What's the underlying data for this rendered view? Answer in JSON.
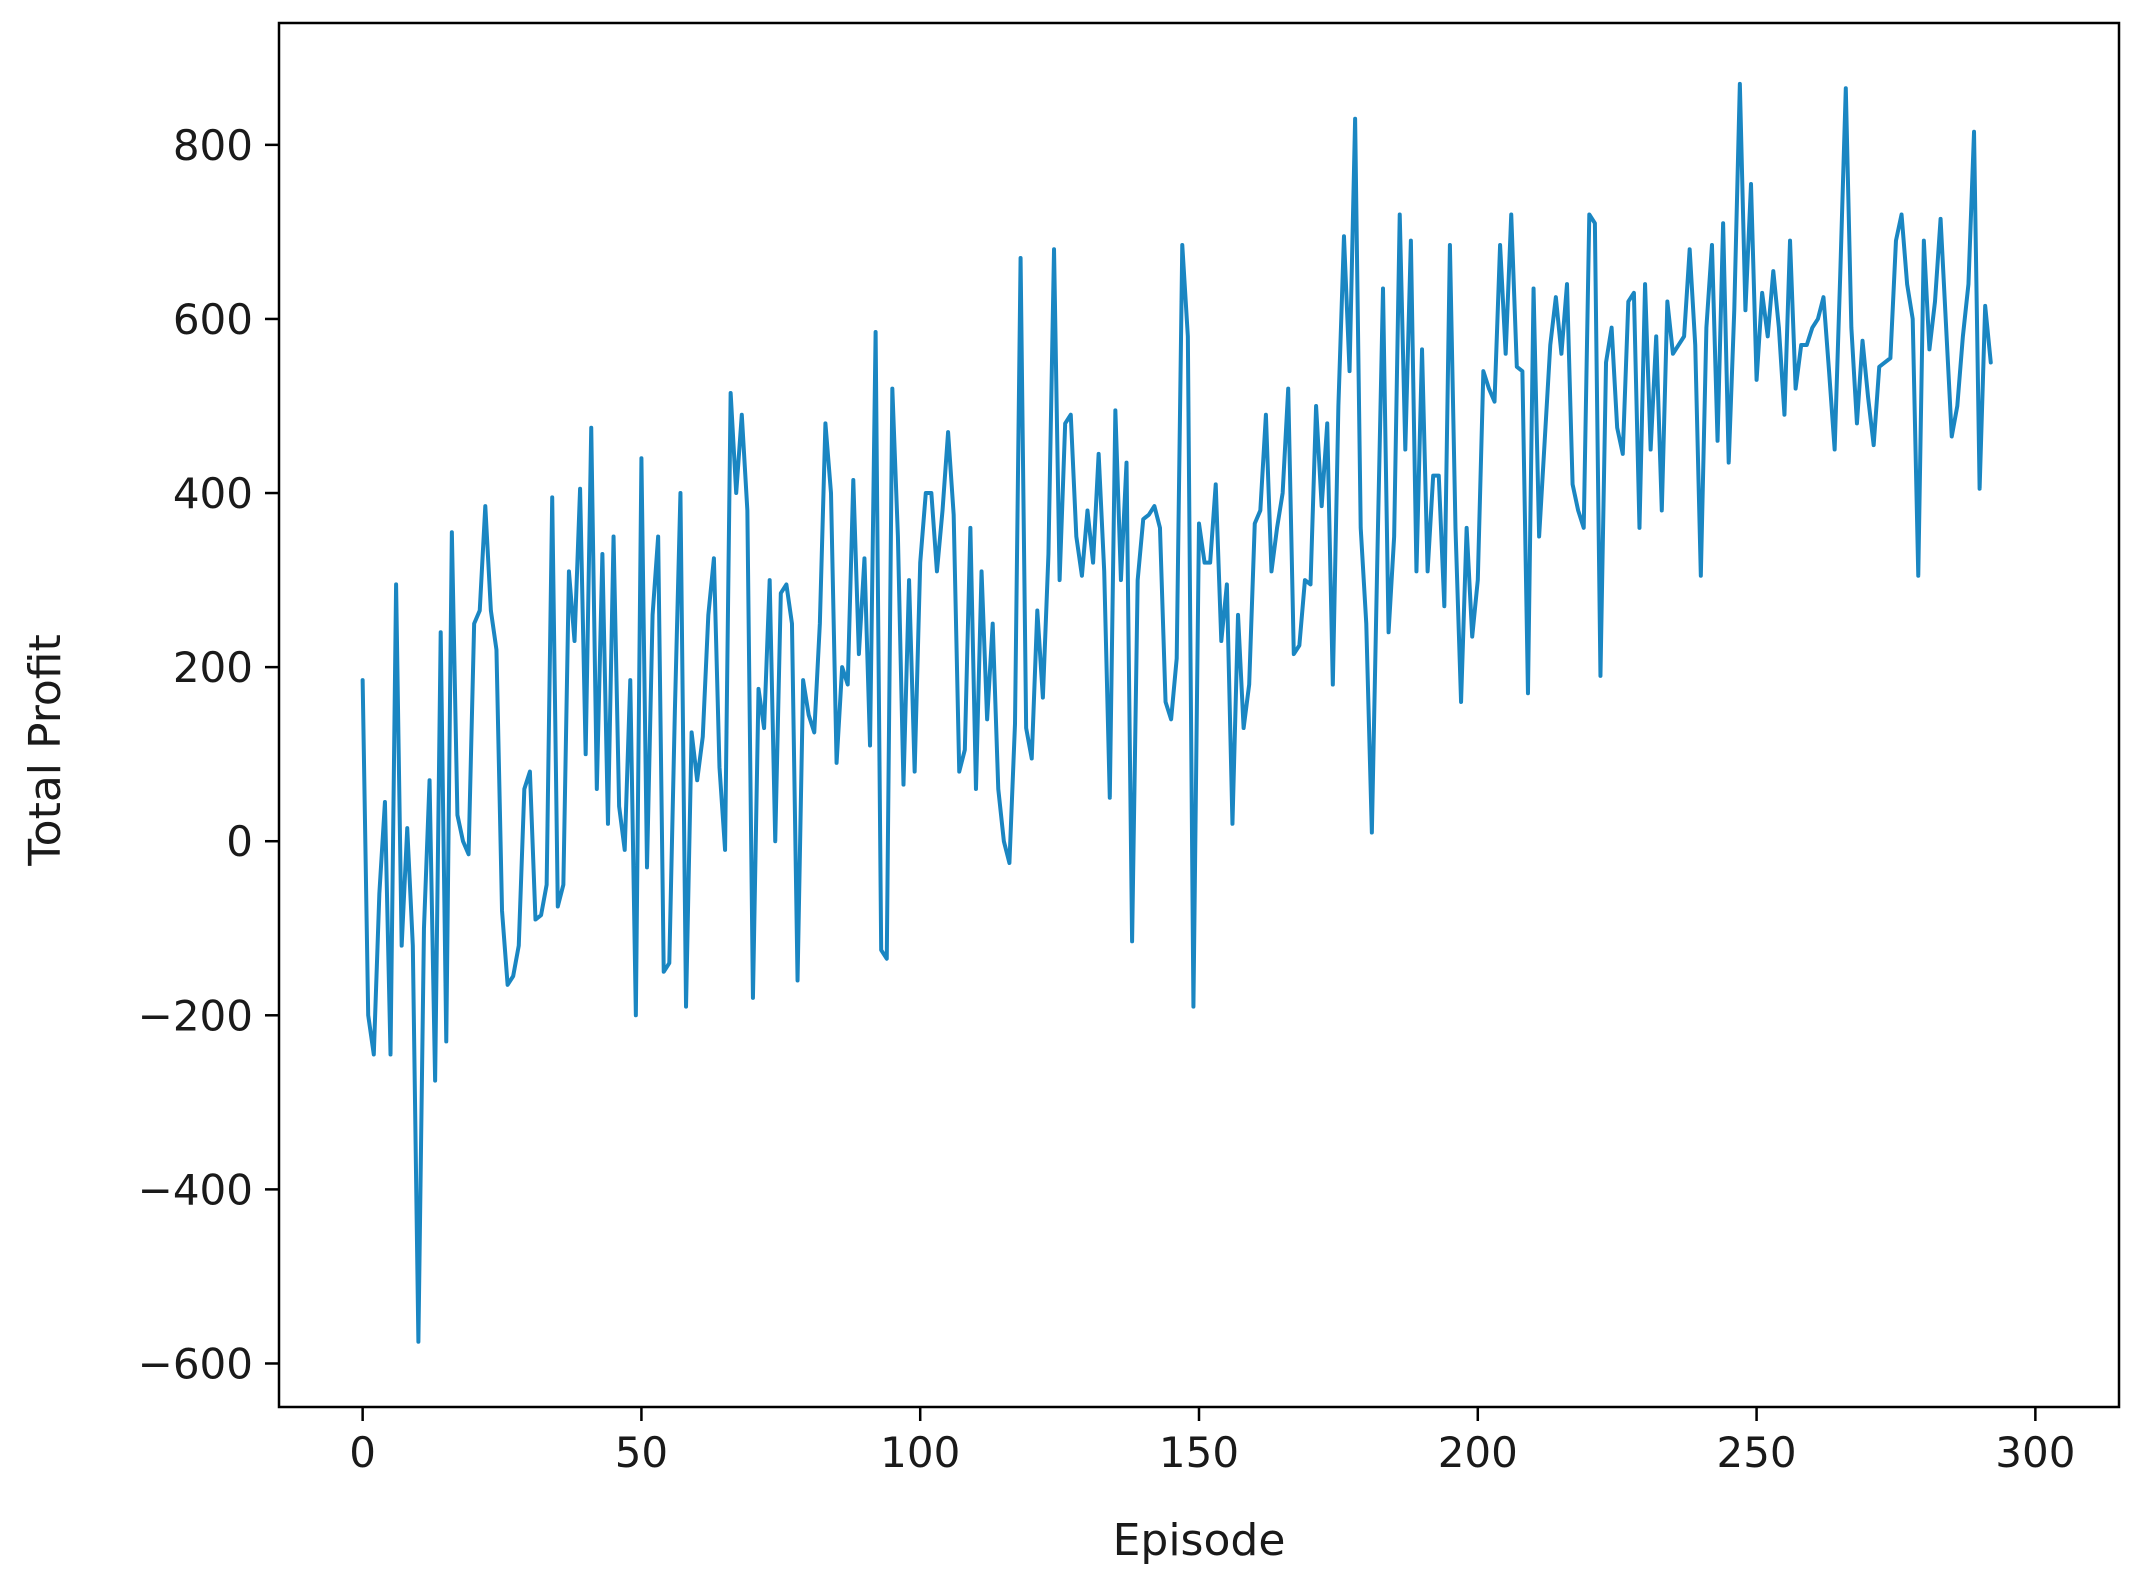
{
  "chart_data": {
    "type": "line",
    "title": "",
    "xlabel": "Episode",
    "ylabel": "Total Profit",
    "xlim": [
      -15,
      315
    ],
    "ylim": [
      -650,
      940
    ],
    "xticks": [
      0,
      50,
      100,
      150,
      200,
      250,
      300
    ],
    "yticks": [
      -600,
      -400,
      -200,
      0,
      200,
      400,
      600,
      800
    ],
    "ytick_labels": [
      "−600",
      "−400",
      "−200",
      "0",
      "200",
      "400",
      "600",
      "800"
    ],
    "grid": false,
    "legend": "none",
    "line_color": "#1a86c2",
    "series": [
      {
        "x_start": 0,
        "values": [
          185,
          -200,
          -245,
          -60,
          45,
          -245,
          295,
          -120,
          15,
          -120,
          -575,
          -100,
          70,
          -275,
          240,
          -230,
          355,
          30,
          0,
          -15,
          250,
          265,
          385,
          265,
          220,
          -80,
          -165,
          -155,
          -120,
          60,
          80,
          -90,
          -85,
          -50,
          395,
          -75,
          -50,
          310,
          230,
          405,
          100,
          475,
          60,
          330,
          20,
          350,
          40,
          -10,
          185,
          -200,
          440,
          -30,
          260,
          350,
          -150,
          -140,
          150,
          400,
          -190,
          125,
          70,
          120,
          260,
          325,
          85,
          -10,
          515,
          400,
          490,
          380,
          -180,
          175,
          130,
          300,
          0,
          285,
          295,
          250,
          -160,
          185,
          145,
          125,
          250,
          480,
          400,
          90,
          200,
          180,
          415,
          215,
          325,
          110,
          585,
          -125,
          -135,
          520,
          350,
          65,
          300,
          80,
          320,
          400,
          400,
          310,
          380,
          470,
          375,
          80,
          105,
          360,
          60,
          310,
          140,
          250,
          60,
          0,
          -25,
          135,
          670,
          130,
          95,
          265,
          165,
          330,
          680,
          300,
          480,
          490,
          350,
          305,
          380,
          320,
          445,
          310,
          50,
          495,
          300,
          435,
          -115,
          300,
          370,
          375,
          385,
          360,
          160,
          140,
          210,
          685,
          580,
          -190,
          365,
          320,
          320,
          410,
          230,
          295,
          20,
          260,
          130,
          180,
          365,
          380,
          490,
          310,
          360,
          400,
          520,
          215,
          225,
          300,
          295,
          500,
          385,
          480,
          180,
          500,
          695,
          540,
          830,
          360,
          250,
          10,
          330,
          635,
          240,
          350,
          720,
          450,
          690,
          310,
          565,
          310,
          420,
          420,
          270,
          685,
          360,
          160,
          360,
          235,
          300,
          540,
          520,
          505,
          685,
          560,
          720,
          545,
          540,
          170,
          635,
          350,
          460,
          570,
          625,
          560,
          640,
          410,
          380,
          360,
          720,
          710,
          190,
          550,
          590,
          475,
          445,
          620,
          630,
          360,
          640,
          450,
          580,
          380,
          620,
          560,
          570,
          580,
          680,
          570,
          305,
          590,
          685,
          460,
          710,
          435,
          610,
          870,
          610,
          755,
          530,
          630,
          580,
          655,
          590,
          490,
          690,
          520,
          570,
          570,
          590,
          600,
          625,
          540,
          450,
          650,
          865,
          590,
          480,
          575,
          510,
          455,
          545,
          550,
          555,
          690,
          720,
          640,
          600,
          305,
          690,
          565,
          620,
          715,
          590,
          465,
          500,
          580,
          640,
          815,
          405,
          615,
          550
        ]
      }
    ]
  }
}
